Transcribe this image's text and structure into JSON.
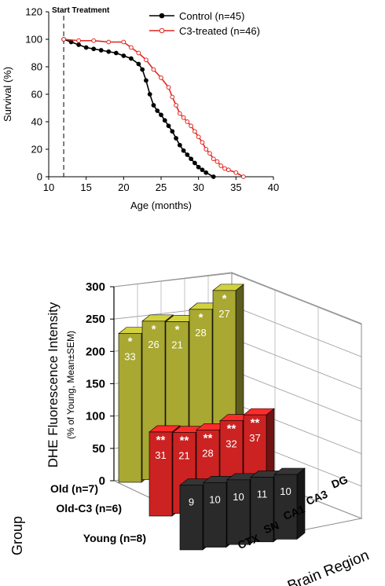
{
  "chart_data": [
    {
      "type": "line",
      "xlabel": "Age (months)",
      "ylabel": "Survival (%)",
      "xlim": [
        10,
        40
      ],
      "ylim": [
        0,
        120
      ],
      "xticks": [
        "10",
        "15",
        "20",
        "25",
        "30",
        "35",
        "40"
      ],
      "yticks": [
        "0",
        "20",
        "40",
        "60",
        "80",
        "100",
        "120"
      ],
      "annotation": "Start Treatment",
      "annotation_x": 12,
      "legend_position": "top-right",
      "grid": false,
      "series": [
        {
          "name": "Control (n=45)",
          "color": "#000000",
          "marker": "filled-circle",
          "x": [
            12,
            13,
            14,
            15,
            16,
            17,
            18,
            19,
            20,
            21,
            22,
            22.5,
            23,
            23.5,
            24,
            24.5,
            25,
            25.5,
            26,
            26.5,
            27,
            27.5,
            28,
            28.5,
            29,
            29.5,
            30,
            30.5,
            31,
            32
          ],
          "y": [
            100,
            98,
            96,
            94,
            93,
            92,
            91,
            90,
            88,
            86,
            82,
            78,
            70,
            60,
            52,
            48,
            45,
            41,
            37,
            33,
            28,
            23,
            19,
            16,
            13,
            10,
            7,
            5,
            3,
            0
          ]
        },
        {
          "name": "C3-treated (n=46)",
          "color": "#e0261f",
          "marker": "open-circle",
          "x": [
            12,
            14,
            16,
            18,
            20,
            21,
            22,
            23,
            24,
            25,
            26,
            26.5,
            27,
            27.5,
            28,
            28.5,
            29,
            29.5,
            30,
            30.5,
            31,
            31.5,
            32,
            32.5,
            33,
            33.5,
            34,
            35,
            36
          ],
          "y": [
            100,
            99,
            99,
            98,
            98,
            94,
            90,
            85,
            78,
            72,
            65,
            58,
            52,
            46,
            43,
            40,
            37,
            33,
            29,
            25,
            20,
            17,
            13,
            11,
            8,
            6,
            5,
            3,
            0
          ]
        }
      ]
    },
    {
      "type": "bar",
      "subtype": "3d-bar",
      "title": "",
      "zlabel": "DHE Fluorescence Intensity",
      "zlabel_sub": "(% of Young, Mean±SEM)",
      "xlabel": "Brain Region",
      "ylabel": "Group",
      "zlim": [
        0,
        300
      ],
      "zticks": [
        "0",
        "50",
        "100",
        "150",
        "200",
        "250",
        "300"
      ],
      "categories": [
        "CTX",
        "SN",
        "CA1",
        "CA3",
        "DG"
      ],
      "series": [
        {
          "name": "Old (n=7)",
          "color": "#a8a832",
          "values": [
            230,
            245,
            240,
            255,
            280
          ],
          "bar_labels": [
            "33",
            "26",
            "21",
            "28",
            "27"
          ],
          "significance": [
            "*",
            "*",
            "*",
            "*",
            "*"
          ]
        },
        {
          "name": "Old-C3 (n=6)",
          "color": "#cc2222",
          "values": [
            130,
            125,
            125,
            135,
            140
          ],
          "bar_labels": [
            "31",
            "21",
            "28",
            "32",
            "37"
          ],
          "significance": [
            "**",
            "**",
            "**",
            "**",
            "**"
          ]
        },
        {
          "name": "Young (n=8)",
          "color": "#2a2a2a",
          "values": [
            100,
            100,
            100,
            100,
            100
          ],
          "bar_labels": [
            "9",
            "10",
            "10",
            "11",
            "10"
          ],
          "significance": [
            "",
            "",
            "",
            "",
            ""
          ]
        }
      ]
    }
  ]
}
